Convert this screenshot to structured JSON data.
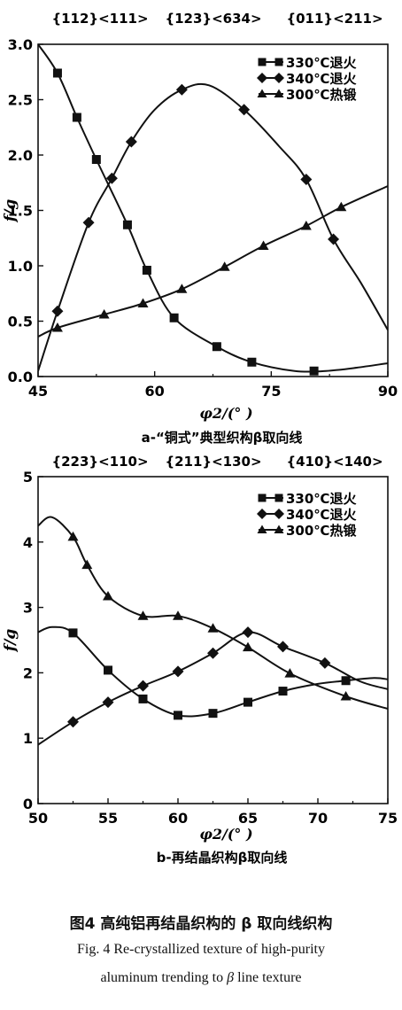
{
  "chart_data": [
    {
      "type": "line",
      "top_labels": [
        "{112}<111>",
        "{123}<634>",
        "{011}<211>"
      ],
      "xlim": [
        45,
        90
      ],
      "ylim": [
        0,
        3.0
      ],
      "xticks": [
        45,
        60,
        75,
        90
      ],
      "yticks": [
        "0.0",
        "0.5",
        "1.0",
        "1.5",
        "2.0",
        "2.5",
        "3.0"
      ],
      "ylabel": "f/g",
      "xlabel": "φ2/(° )",
      "subcaption": "a-“铜式”典型织构β取向线",
      "legend_position": "top-right",
      "series": [
        {
          "name": "330℃退火",
          "marker": "square",
          "points": [
            [
              47.5,
              2.74
            ],
            [
              50,
              2.34
            ],
            [
              52.5,
              1.96
            ],
            [
              56.5,
              1.37
            ],
            [
              59,
              0.96
            ],
            [
              62.5,
              0.53
            ],
            [
              68,
              0.27
            ],
            [
              72.5,
              0.13
            ],
            [
              80.5,
              0.05
            ]
          ],
          "curve": [
            [
              45,
              3.0
            ],
            [
              47.5,
              2.74
            ],
            [
              50,
              2.34
            ],
            [
              52.5,
              1.96
            ],
            [
              56.5,
              1.37
            ],
            [
              59,
              0.96
            ],
            [
              62.5,
              0.53
            ],
            [
              68,
              0.27
            ],
            [
              72.5,
              0.13
            ],
            [
              78,
              0.05
            ],
            [
              82,
              0.05
            ],
            [
              86,
              0.08
            ],
            [
              90,
              0.12
            ]
          ]
        },
        {
          "name": "340℃退火",
          "marker": "diamond",
          "points": [
            [
              47.5,
              0.59
            ],
            [
              51.5,
              1.39
            ],
            [
              54.5,
              1.79
            ],
            [
              57,
              2.12
            ],
            [
              63.5,
              2.59
            ],
            [
              71.5,
              2.41
            ],
            [
              79.5,
              1.78
            ],
            [
              83,
              1.24
            ]
          ],
          "curve": [
            [
              45,
              0.05
            ],
            [
              47.5,
              0.59
            ],
            [
              51.5,
              1.39
            ],
            [
              54.5,
              1.79
            ],
            [
              57,
              2.12
            ],
            [
              60,
              2.41
            ],
            [
              63.5,
              2.59
            ],
            [
              67,
              2.63
            ],
            [
              71.5,
              2.41
            ],
            [
              76,
              2.08
            ],
            [
              79.5,
              1.78
            ],
            [
              83,
              1.24
            ],
            [
              86.5,
              0.85
            ],
            [
              90,
              0.42
            ]
          ]
        },
        {
          "name": "300℃热锻",
          "marker": "triangle",
          "points": [
            [
              47.5,
              0.44
            ],
            [
              53.5,
              0.56
            ],
            [
              58.5,
              0.66
            ],
            [
              63.5,
              0.79
            ],
            [
              69,
              0.99
            ],
            [
              74,
              1.18
            ],
            [
              79.5,
              1.36
            ],
            [
              84,
              1.53
            ]
          ],
          "curve": [
            [
              45,
              0.36
            ],
            [
              47.5,
              0.44
            ],
            [
              53.5,
              0.56
            ],
            [
              58.5,
              0.66
            ],
            [
              63.5,
              0.79
            ],
            [
              69,
              0.99
            ],
            [
              74,
              1.18
            ],
            [
              79.5,
              1.36
            ],
            [
              84,
              1.53
            ],
            [
              90,
              1.72
            ]
          ]
        }
      ]
    },
    {
      "type": "line",
      "top_labels": [
        "{223}<110>",
        "{211}<130>",
        "{410}<140>"
      ],
      "xlim": [
        50,
        75
      ],
      "ylim": [
        0,
        5
      ],
      "xticks": [
        50,
        55,
        60,
        65,
        70,
        75
      ],
      "yticks": [
        "0",
        "1",
        "2",
        "3",
        "4",
        "5"
      ],
      "ylabel": "f/g",
      "xlabel": "φ2/(° )",
      "subcaption": "b-再结晶织构β取向线",
      "legend_position": "top-right",
      "series": [
        {
          "name": "330℃退火",
          "marker": "square",
          "points": [
            [
              52.5,
              2.61
            ],
            [
              55,
              2.04
            ],
            [
              57.5,
              1.6
            ],
            [
              60,
              1.35
            ],
            [
              62.5,
              1.38
            ],
            [
              65,
              1.55
            ],
            [
              67.5,
              1.72
            ],
            [
              72,
              1.88
            ]
          ],
          "curve": [
            [
              50,
              2.62
            ],
            [
              51,
              2.7
            ],
            [
              52.5,
              2.61
            ],
            [
              55,
              2.04
            ],
            [
              57.5,
              1.6
            ],
            [
              60,
              1.35
            ],
            [
              62.5,
              1.38
            ],
            [
              65,
              1.55
            ],
            [
              67.5,
              1.72
            ],
            [
              70,
              1.83
            ],
            [
              72,
              1.88
            ],
            [
              74,
              1.92
            ],
            [
              75,
              1.9
            ]
          ]
        },
        {
          "name": "340℃退火",
          "marker": "diamond",
          "points": [
            [
              52.5,
              1.25
            ],
            [
              55,
              1.55
            ],
            [
              57.5,
              1.8
            ],
            [
              60,
              2.02
            ],
            [
              62.5,
              2.3
            ],
            [
              65,
              2.62
            ],
            [
              67.5,
              2.4
            ],
            [
              70.5,
              2.15
            ]
          ],
          "curve": [
            [
              50,
              0.9
            ],
            [
              52.5,
              1.25
            ],
            [
              55,
              1.55
            ],
            [
              57.5,
              1.8
            ],
            [
              60,
              2.02
            ],
            [
              62.5,
              2.3
            ],
            [
              65,
              2.62
            ],
            [
              67.5,
              2.4
            ],
            [
              70.5,
              2.15
            ],
            [
              73,
              1.87
            ],
            [
              75,
              1.75
            ]
          ]
        },
        {
          "name": "300℃热锻",
          "marker": "triangle",
          "points": [
            [
              52.5,
              4.08
            ],
            [
              53.5,
              3.65
            ],
            [
              55,
              3.17
            ],
            [
              57.5,
              2.87
            ],
            [
              60,
              2.87
            ],
            [
              62.5,
              2.68
            ],
            [
              65,
              2.39
            ],
            [
              68,
              1.99
            ],
            [
              72,
              1.64
            ]
          ],
          "curve": [
            [
              50,
              4.25
            ],
            [
              51,
              4.38
            ],
            [
              52.5,
              4.08
            ],
            [
              53.5,
              3.65
            ],
            [
              55,
              3.17
            ],
            [
              57.5,
              2.87
            ],
            [
              60,
              2.87
            ],
            [
              62.5,
              2.68
            ],
            [
              65,
              2.39
            ],
            [
              68,
              1.99
            ],
            [
              72,
              1.64
            ],
            [
              75,
              1.45
            ]
          ]
        }
      ]
    }
  ],
  "caption": {
    "cn": "图4   高纯铝再结晶织构的 β 取向线织构",
    "en_line1": "Fig. 4 Re-crystallized texture of high-purity",
    "en_line2_text": "aluminum trending to ",
    "en_line2_symbol": "β",
    "en_line2_end": " line texture"
  }
}
